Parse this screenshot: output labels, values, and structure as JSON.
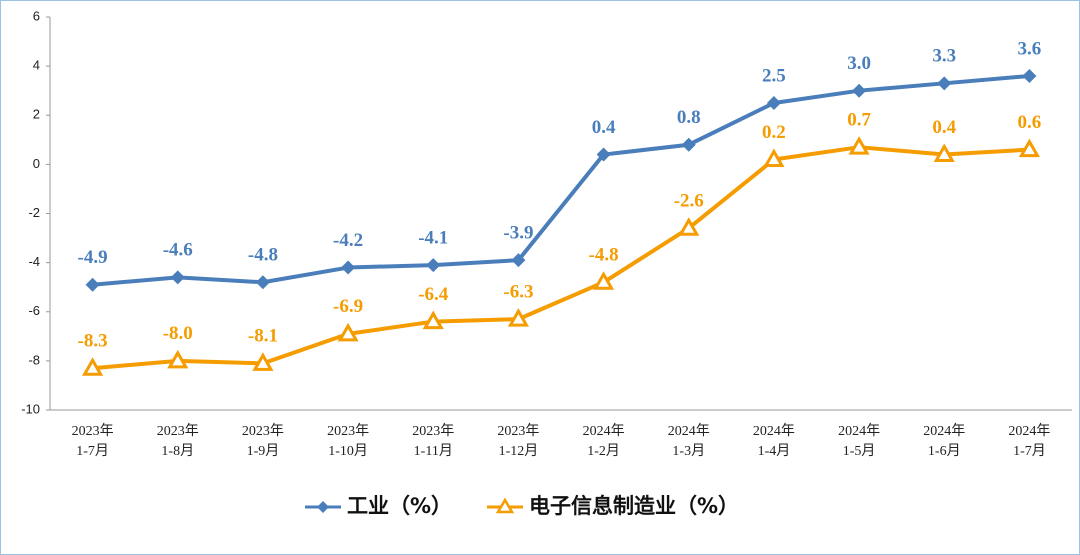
{
  "chart_data": {
    "type": "line",
    "categories": [
      [
        "2023年",
        "1-7月"
      ],
      [
        "2023年",
        "1-8月"
      ],
      [
        "2023年",
        "1-9月"
      ],
      [
        "2023年",
        "1-10月"
      ],
      [
        "2023年",
        "1-11月"
      ],
      [
        "2023年",
        "1-12月"
      ],
      [
        "2024年",
        "1-2月"
      ],
      [
        "2024年",
        "1-3月"
      ],
      [
        "2024年",
        "1-4月"
      ],
      [
        "2024年",
        "1-5月"
      ],
      [
        "2024年",
        "1-6月"
      ],
      [
        "2024年",
        "1-7月"
      ]
    ],
    "series": [
      {
        "name": "工业（%）",
        "color": "#4a7ebb",
        "values": [
          -4.9,
          -4.6,
          -4.8,
          -4.2,
          -4.1,
          -3.9,
          0.4,
          0.8,
          2.5,
          3.0,
          3.3,
          3.6
        ],
        "value_labels": [
          "-4.9",
          "-4.6",
          "-4.8",
          "-4.2",
          "-4.1",
          "-3.9",
          "0.4",
          "0.8",
          "2.5",
          "3.0",
          "3.3",
          "3.6"
        ]
      },
      {
        "name": "电子信息制造业（%）",
        "color": "#f59c00",
        "values": [
          -8.3,
          -8.0,
          -8.1,
          -6.9,
          -6.4,
          -6.3,
          -4.8,
          -2.6,
          0.2,
          0.7,
          0.4,
          0.6
        ],
        "value_labels": [
          "-8.3",
          "-8.0",
          "-8.1",
          "-6.9",
          "-6.4",
          "-6.3",
          "-4.8",
          "-2.6",
          "0.2",
          "0.7",
          "0.4",
          "0.6"
        ]
      }
    ],
    "ylim": [
      -10,
      6
    ],
    "yticks": [
      -10,
      -8,
      -6,
      -4,
      -2,
      0,
      2,
      4,
      6
    ],
    "grid": false,
    "legend": "bottom"
  }
}
